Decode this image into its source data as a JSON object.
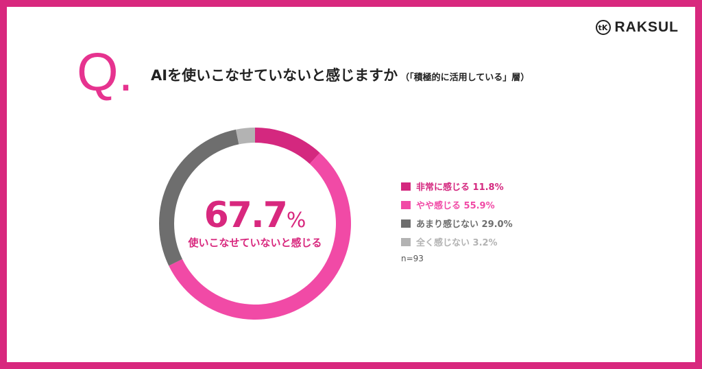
{
  "logo": {
    "mark": "tK",
    "text": "RAKSUL"
  },
  "question": {
    "q": "Q",
    "dot": ".",
    "main": "AIを使いこなせていないと感じますか",
    "sub": "（「積極的に活用している」層）"
  },
  "center": {
    "value": "67.7",
    "unit": "%",
    "label": "使いこなせていないと感じる"
  },
  "sample_size": "n=93",
  "colors": {
    "frame": "#d8287e",
    "s1": "#d4287f",
    "s2": "#f14aa6",
    "s3": "#6e6e6e",
    "s4": "#b3b3b3"
  },
  "chart_data": {
    "type": "pie",
    "donut": true,
    "title": "AIを使いこなせていないと感じますか",
    "categories": [
      "非常に感じる",
      "やや感じる",
      "あまり感じない",
      "全く感じない"
    ],
    "values": [
      11.8,
      55.9,
      29.0,
      3.2
    ],
    "colors": [
      "#d4287f",
      "#f14aa6",
      "#6e6e6e",
      "#b3b3b3"
    ],
    "legend_labels": [
      "非常に感じる 11.8%",
      "やや感じる 55.9%",
      "あまり感じない 29.0%",
      "全く感じない 3.2%"
    ],
    "legend_placement": "right"
  }
}
